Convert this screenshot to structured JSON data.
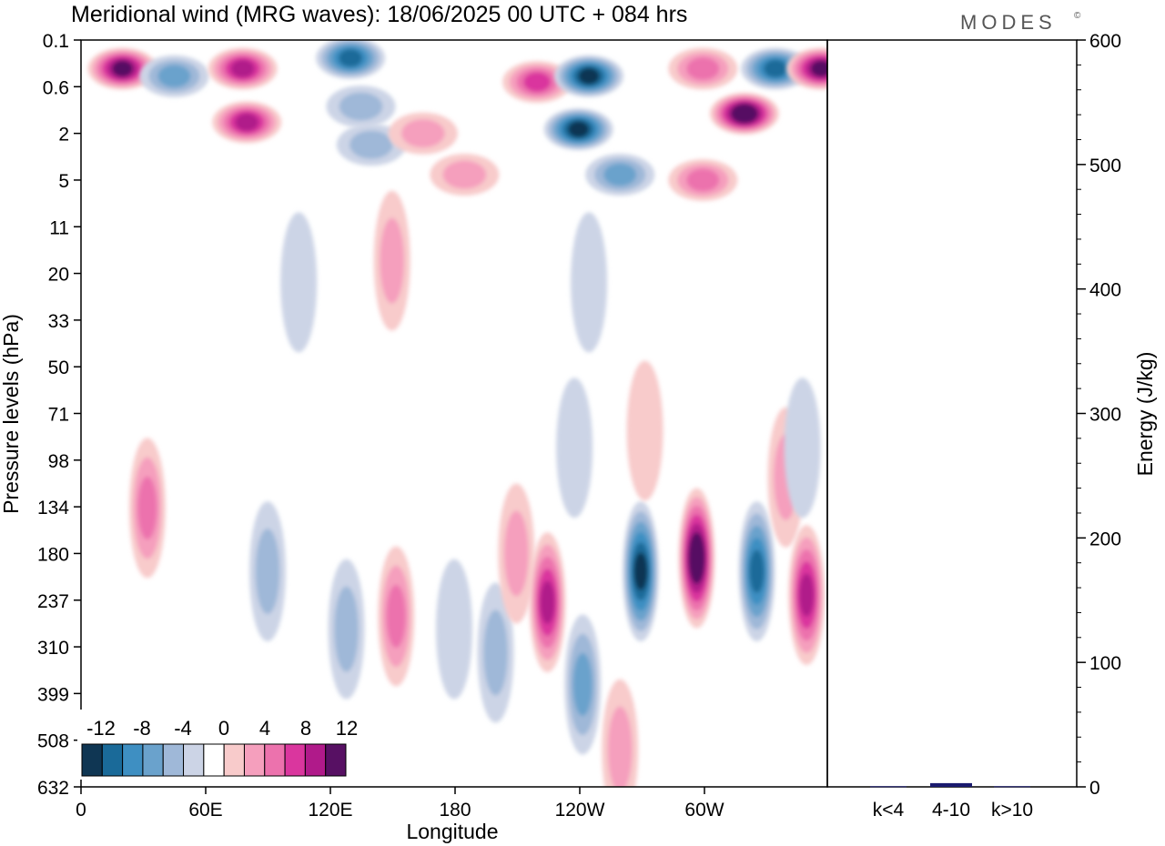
{
  "title": "Meridional wind (MRG waves):  18/06/2025  00 UTC  + 084 hrs",
  "logo": "MODES",
  "logo_mark": "©",
  "chart_data": [
    {
      "type": "heatmap",
      "variable": "Meridional wind (MRG waves)",
      "xlabel": "Longitude",
      "ylabel": "Pressure levels (hPa)",
      "x_ticks": [
        "0",
        "60E",
        "120E",
        "180",
        "120W",
        "60W"
      ],
      "y_ticks": [
        "0.1",
        "0.6",
        "2",
        "5",
        "11",
        "20",
        "33",
        "50",
        "71",
        "98",
        "134",
        "180",
        "237",
        "310",
        "399",
        "508",
        "632"
      ],
      "x_range_deg_east": [
        0,
        360
      ],
      "colorbar": {
        "ticks": [
          "-12",
          "-8",
          "-4",
          "0",
          "4",
          "8",
          "12"
        ],
        "levels": [
          -14,
          -12,
          -10,
          -8,
          -6,
          -4,
          -2,
          2,
          4,
          6,
          8,
          10,
          12,
          14
        ],
        "colors": [
          "#0f3653",
          "#1a6a99",
          "#3e8fc2",
          "#6aa2cc",
          "#9fb8d8",
          "#ccd4e6",
          "#ffffff",
          "#f8cbcb",
          "#f59fbd",
          "#ec72ad",
          "#da369e",
          "#b01a8a",
          "#571063"
        ]
      },
      "features": [
        {
          "lon": 20,
          "p": 0.3,
          "v": 13
        },
        {
          "lon": 45,
          "p": 0.4,
          "v": -6
        },
        {
          "lon": 78,
          "p": 0.3,
          "v": 10
        },
        {
          "lon": 80,
          "p": 1.5,
          "v": 10
        },
        {
          "lon": 130,
          "p": 0.2,
          "v": -10
        },
        {
          "lon": 135,
          "p": 1.0,
          "v": -5
        },
        {
          "lon": 140,
          "p": 2.5,
          "v": -4
        },
        {
          "lon": 165,
          "p": 2.0,
          "v": 5
        },
        {
          "lon": 185,
          "p": 4.5,
          "v": 4
        },
        {
          "lon": 220,
          "p": 0.5,
          "v": 8
        },
        {
          "lon": 245,
          "p": 0.4,
          "v": -13
        },
        {
          "lon": 240,
          "p": 1.8,
          "v": -12
        },
        {
          "lon": 260,
          "p": 4.5,
          "v": -6
        },
        {
          "lon": 300,
          "p": 0.3,
          "v": 7
        },
        {
          "lon": 320,
          "p": 1.2,
          "v": 14
        },
        {
          "lon": 300,
          "p": 5.0,
          "v": 7
        },
        {
          "lon": 335,
          "p": 0.3,
          "v": -10
        },
        {
          "lon": 357,
          "p": 0.3,
          "v": 12
        },
        {
          "lon": 150,
          "p": 17,
          "v": 4
        },
        {
          "lon": 105,
          "p": 22,
          "v": -3
        },
        {
          "lon": 245,
          "p": 22,
          "v": -3
        },
        {
          "lon": 32,
          "p": 135,
          "v": 7
        },
        {
          "lon": 90,
          "p": 200,
          "v": -5
        },
        {
          "lon": 128,
          "p": 280,
          "v": -4
        },
        {
          "lon": 152,
          "p": 260,
          "v": 6
        },
        {
          "lon": 180,
          "p": 280,
          "v": -3
        },
        {
          "lon": 200,
          "p": 320,
          "v": -4
        },
        {
          "lon": 210,
          "p": 180,
          "v": 5
        },
        {
          "lon": 225,
          "p": 240,
          "v": 11
        },
        {
          "lon": 238,
          "p": 90,
          "v": -3
        },
        {
          "lon": 242,
          "p": 380,
          "v": -6
        },
        {
          "lon": 260,
          "p": 530,
          "v": 5
        },
        {
          "lon": 270,
          "p": 200,
          "v": -13
        },
        {
          "lon": 272,
          "p": 80,
          "v": 3
        },
        {
          "lon": 297,
          "p": 185,
          "v": 15
        },
        {
          "lon": 326,
          "p": 200,
          "v": -11
        },
        {
          "lon": 340,
          "p": 110,
          "v": 5
        },
        {
          "lon": 350,
          "p": 230,
          "v": 10
        },
        {
          "lon": 348,
          "p": 90,
          "v": -3
        }
      ]
    },
    {
      "type": "bar",
      "ylabel": "Energy (J/kg)",
      "categories": [
        "k<4",
        "4-10",
        "k>10"
      ],
      "values": [
        0.5,
        3,
        0.5
      ],
      "ylim": [
        0,
        600
      ],
      "y_ticks": [
        "0",
        "100",
        "200",
        "300",
        "400",
        "500",
        "600"
      ],
      "bar_color": "#1a1a6e"
    }
  ]
}
